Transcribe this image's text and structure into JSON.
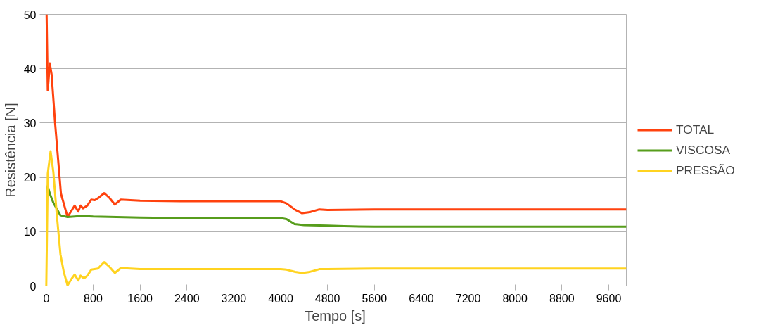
{
  "chart_data": {
    "type": "line",
    "xlabel": "Tempo [s]",
    "ylabel": "Resistência [N]",
    "xlim": [
      -40,
      9900
    ],
    "xticks": [
      0,
      800,
      1600,
      2400,
      3200,
      4000,
      4800,
      5600,
      6400,
      7200,
      8000,
      8800,
      9600
    ],
    "ylim": [
      0,
      50
    ],
    "yticks": [
      0,
      10,
      20,
      30,
      40,
      50
    ],
    "grid": "y",
    "legend": "right",
    "marker": "none",
    "line_style": "solid",
    "series": [
      {
        "name": "TOTAL",
        "color": "#ff420e",
        "x": [
          5,
          25,
          60,
          90,
          150,
          250,
          363,
          484,
          545,
          585,
          625,
          700,
          767,
          827,
          900,
          988,
          1080,
          1170,
          1271,
          1600,
          2400,
          3200,
          4000,
          4100,
          4250,
          4366,
          4500,
          4660,
          4800,
          5600,
          6400,
          7200,
          8000,
          8800,
          9900
        ],
        "values": [
          50,
          36,
          41,
          39,
          30,
          17,
          12.7,
          14.8,
          13.7,
          14.8,
          14.3,
          14.8,
          15.9,
          15.8,
          16.3,
          17.1,
          16.2,
          15.0,
          15.9,
          15.7,
          15.6,
          15.6,
          15.6,
          15.2,
          14.0,
          13.4,
          13.6,
          14.1,
          14.0,
          14.1,
          14.1,
          14.1,
          14.1,
          14.1,
          14.1
        ]
      },
      {
        "name": "VISCOSA",
        "color": "#579d1c",
        "x": [
          5,
          24,
          60,
          121,
          242,
          363,
          600,
          800,
          1600,
          2400,
          3200,
          4000,
          4100,
          4237,
          4400,
          4800,
          5083,
          5600,
          6400,
          7200,
          8000,
          8800,
          9900
        ],
        "values": [
          17,
          18.4,
          17,
          15.3,
          13.0,
          12.7,
          12.9,
          12.8,
          12.6,
          12.5,
          12.5,
          12.5,
          12.3,
          11.4,
          11.2,
          11.1,
          11.0,
          10.9,
          10.9,
          10.9,
          10.9,
          10.9,
          10.9
        ]
      },
      {
        "name": "PRESSÃO",
        "color": "#ffd320",
        "x": [
          0,
          25,
          73,
          120,
          180,
          242,
          300,
          363,
          430,
          484,
          545,
          585,
          645,
          700,
          767,
          880,
          988,
          1080,
          1170,
          1271,
          1600,
          2400,
          3200,
          4000,
          4100,
          4250,
          4366,
          4500,
          4660,
          4800,
          5600,
          6400,
          7200,
          8000,
          8800,
          9900
        ],
        "values": [
          0,
          20.7,
          24.8,
          21,
          13,
          5.8,
          2.5,
          0.1,
          1.3,
          2.1,
          1.0,
          1.9,
          1.4,
          1.9,
          3.0,
          3.2,
          4.4,
          3.5,
          2.4,
          3.3,
          3.1,
          3.1,
          3.1,
          3.1,
          3.0,
          2.6,
          2.4,
          2.6,
          3.1,
          3.1,
          3.2,
          3.2,
          3.2,
          3.2,
          3.2,
          3.2
        ]
      }
    ]
  }
}
